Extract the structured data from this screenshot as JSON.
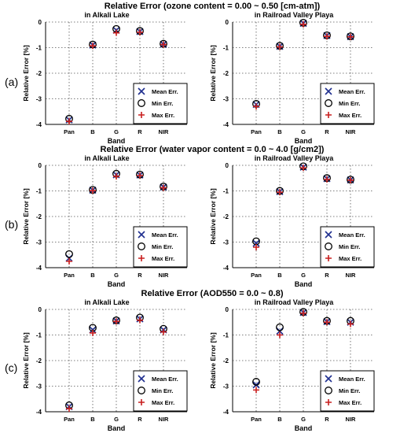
{
  "rows": [
    {
      "label": "(a)",
      "title": "Relative Error (ozone content = 0.00 ~ 0.50 [cm-atm])"
    },
    {
      "label": "(b)",
      "title": "Relative Error (water vapor content = 0.0 ~ 4.0 [g/cm2])"
    },
    {
      "label": "(c)",
      "title": "Relative Error (AOD550 = 0.0 ~ 0.8)"
    }
  ],
  "legend": {
    "mean": "Mean Err.",
    "min": "Min Err.",
    "max": "Max Err."
  },
  "colors": {
    "mean": "#1f2f8f",
    "min": "#000000",
    "max": "#c81e1e"
  },
  "chart_data": [
    {
      "type": "scatter",
      "row": 0,
      "col": 0,
      "subtitle": "in Alkali Lake",
      "categories": [
        "Pan",
        "B",
        "G",
        "R",
        "NIR"
      ],
      "xlabel": "Band",
      "ylabel": "Relative Error [%]",
      "ylim": [
        -4,
        0
      ],
      "yticks": [
        -4,
        -3,
        -2,
        -1,
        0
      ],
      "grid": true,
      "legend": "bottom-right",
      "series": [
        {
          "name": "Mean Err.",
          "values": [
            -3.82,
            -0.9,
            -0.32,
            -0.37,
            -0.87
          ]
        },
        {
          "name": "Min Err.",
          "values": [
            -3.78,
            -0.88,
            -0.27,
            -0.35,
            -0.85
          ]
        },
        {
          "name": "Max Err.",
          "values": [
            -3.88,
            -0.93,
            -0.42,
            -0.4,
            -0.88
          ]
        }
      ]
    },
    {
      "type": "scatter",
      "row": 0,
      "col": 1,
      "subtitle": "in Railroad Valley Playa",
      "categories": [
        "Pan",
        "B",
        "G",
        "R",
        "NIR"
      ],
      "xlabel": "Band",
      "ylabel": "Relative Error [%]",
      "ylim": [
        -4,
        0
      ],
      "yticks": [
        -4,
        -3,
        -2,
        -1,
        0
      ],
      "grid": true,
      "legend": "bottom-right",
      "series": [
        {
          "name": "Mean Err.",
          "values": [
            -3.22,
            -0.95,
            -0.05,
            -0.53,
            -0.57
          ]
        },
        {
          "name": "Min Err.",
          "values": [
            -3.2,
            -0.93,
            -0.03,
            -0.52,
            -0.56
          ]
        },
        {
          "name": "Max Err.",
          "values": [
            -3.3,
            -0.97,
            -0.09,
            -0.56,
            -0.58
          ]
        }
      ]
    },
    {
      "type": "scatter",
      "row": 1,
      "col": 0,
      "subtitle": "in Alkali Lake",
      "categories": [
        "Pan",
        "B",
        "G",
        "R",
        "NIR"
      ],
      "xlabel": "Band",
      "ylabel": "Relative Error [%]",
      "ylim": [
        -4,
        0
      ],
      "yticks": [
        -4,
        -3,
        -2,
        -1,
        0
      ],
      "grid": true,
      "legend": "bottom-right",
      "series": [
        {
          "name": "Mean Err.",
          "values": [
            -3.63,
            -0.97,
            -0.37,
            -0.38,
            -0.85
          ]
        },
        {
          "name": "Min Err.",
          "values": [
            -3.47,
            -0.96,
            -0.33,
            -0.36,
            -0.83
          ]
        },
        {
          "name": "Max Err.",
          "values": [
            -3.75,
            -0.99,
            -0.43,
            -0.4,
            -0.88
          ]
        }
      ]
    },
    {
      "type": "scatter",
      "row": 1,
      "col": 1,
      "subtitle": "in Railroad Valley Playa",
      "categories": [
        "Pan",
        "B",
        "G",
        "R",
        "NIR"
      ],
      "xlabel": "Band",
      "ylabel": "Relative Error [%]",
      "ylim": [
        -4,
        0
      ],
      "yticks": [
        -4,
        -3,
        -2,
        -1,
        0
      ],
      "grid": true,
      "legend": "bottom-right",
      "series": [
        {
          "name": "Mean Err.",
          "values": [
            -3.05,
            -1.03,
            -0.07,
            -0.52,
            -0.57
          ]
        },
        {
          "name": "Min Err.",
          "values": [
            -2.97,
            -1.0,
            -0.04,
            -0.5,
            -0.56
          ]
        },
        {
          "name": "Max Err.",
          "values": [
            -3.2,
            -1.05,
            -0.1,
            -0.55,
            -0.58
          ]
        }
      ]
    },
    {
      "type": "scatter",
      "row": 2,
      "col": 0,
      "subtitle": "in Alkali Lake",
      "categories": [
        "Pan",
        "B",
        "G",
        "R",
        "NIR"
      ],
      "xlabel": "Band",
      "ylabel": "Relative Error [%]",
      "ylim": [
        -4,
        0
      ],
      "yticks": [
        -4,
        -3,
        -2,
        -1,
        0
      ],
      "grid": true,
      "legend": "bottom-right",
      "series": [
        {
          "name": "Mean Err.",
          "values": [
            -3.8,
            -0.8,
            -0.45,
            -0.37,
            -0.8
          ]
        },
        {
          "name": "Min Err.",
          "values": [
            -3.75,
            -0.72,
            -0.43,
            -0.32,
            -0.76
          ]
        },
        {
          "name": "Max Err.",
          "values": [
            -3.88,
            -0.92,
            -0.47,
            -0.42,
            -0.88
          ]
        }
      ]
    },
    {
      "type": "scatter",
      "row": 2,
      "col": 1,
      "subtitle": "in Railroad Valley Playa",
      "categories": [
        "Pan",
        "B",
        "G",
        "R",
        "NIR"
      ],
      "xlabel": "Band",
      "ylabel": "Relative Error [%]",
      "ylim": [
        -4,
        0
      ],
      "yticks": [
        -4,
        -3,
        -2,
        -1,
        0
      ],
      "grid": true,
      "legend": "bottom-right",
      "series": [
        {
          "name": "Mean Err.",
          "values": [
            -2.95,
            -0.85,
            -0.12,
            -0.48,
            -0.5
          ]
        },
        {
          "name": "Min Err.",
          "values": [
            -2.83,
            -0.7,
            -0.1,
            -0.45,
            -0.45
          ]
        },
        {
          "name": "Max Err.",
          "values": [
            -3.15,
            -1.0,
            -0.15,
            -0.5,
            -0.57
          ]
        }
      ]
    }
  ]
}
